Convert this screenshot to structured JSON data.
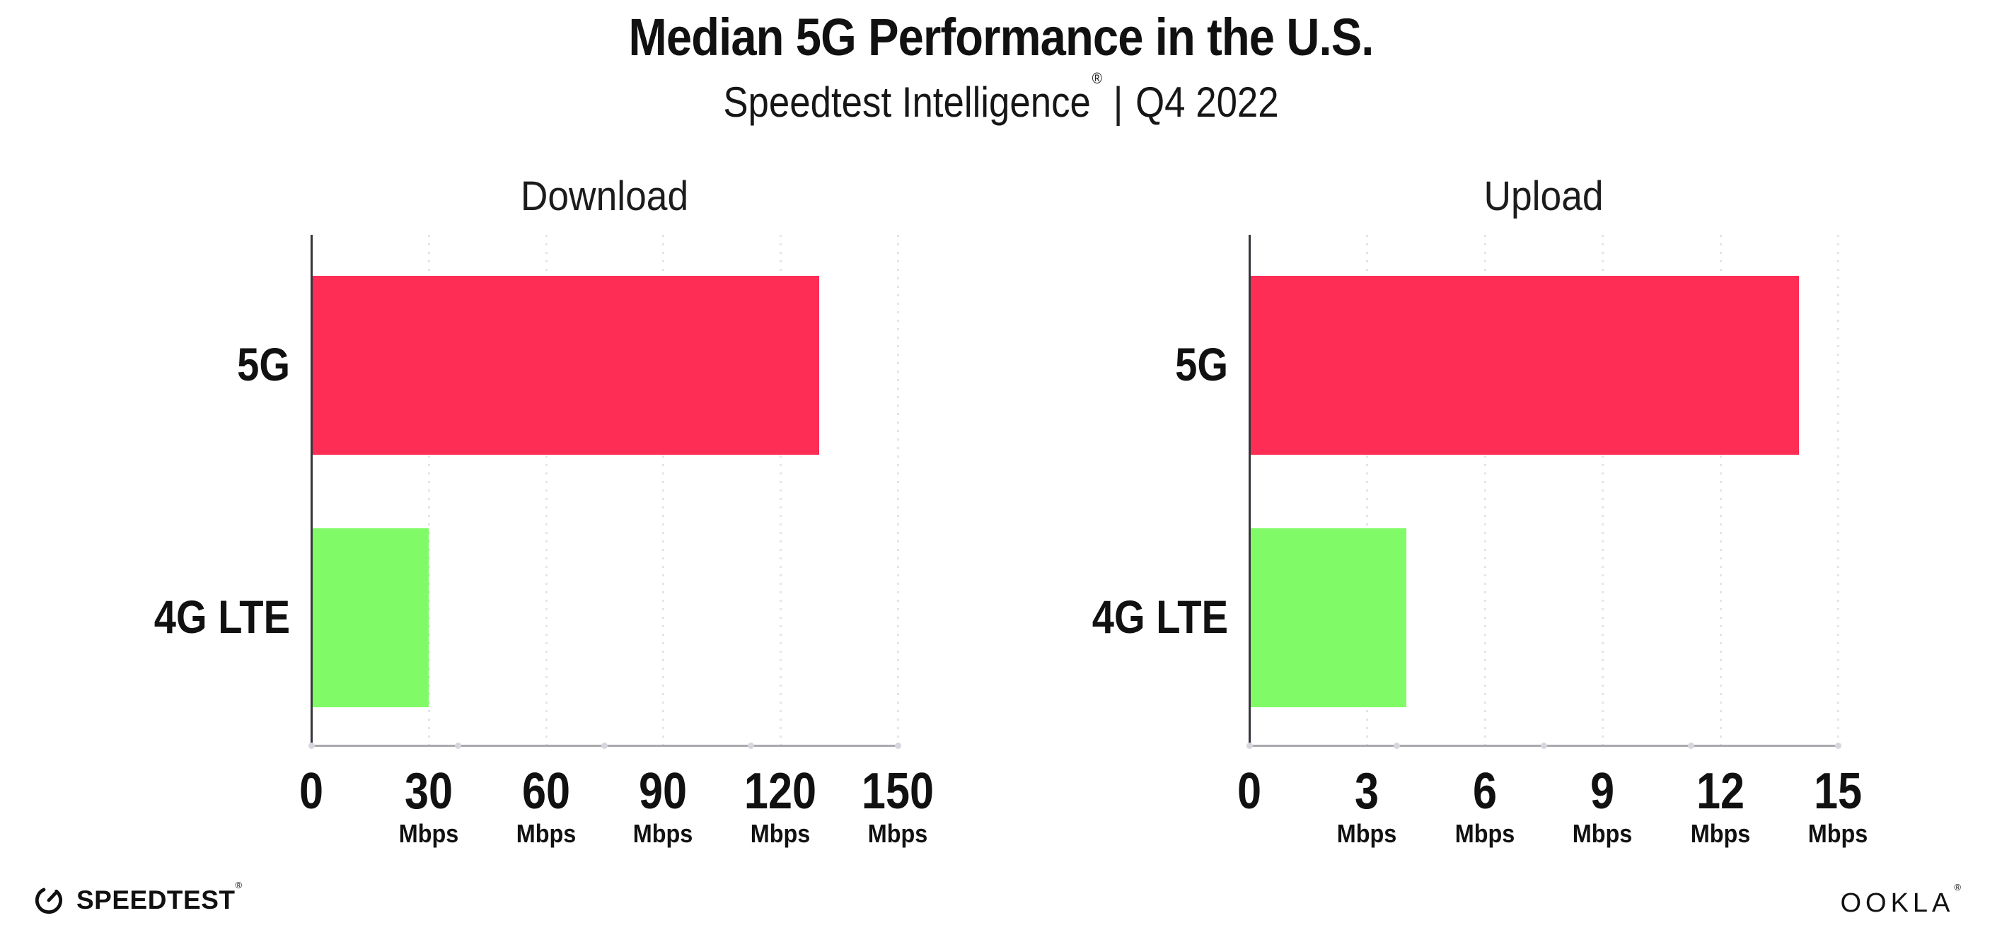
{
  "header": {
    "title": "Median 5G Performance in the U.S.",
    "product": "Speedtest Intelligence",
    "product_mark": "®",
    "separator": "|",
    "period": "Q4 2022"
  },
  "footer": {
    "speedtest": "SPEEDTEST",
    "speedtest_mark": "®",
    "ookla": "OOKLA",
    "ookla_mark": "®"
  },
  "colors": {
    "bar_5g": "#FD2D55",
    "bar_4g_lte": "#80FA66",
    "gridline": "#E4E4EC",
    "axis_line": "#A9A9AE",
    "y_axis": "#35353A",
    "text": "#111111",
    "background": "#FFFFFF"
  },
  "chart_data": [
    {
      "type": "bar",
      "orientation": "horizontal",
      "title": "Download",
      "categories": [
        "5G",
        "4G LTE"
      ],
      "values": [
        130,
        30
      ],
      "unit": "Mbps",
      "xlim": [
        0,
        150
      ],
      "xticks": [
        0,
        30,
        60,
        90,
        120,
        150
      ],
      "bar_colors": [
        "#FD2D55",
        "#80FA66"
      ],
      "grid": "vertical dotted",
      "legend": "none"
    },
    {
      "type": "bar",
      "orientation": "horizontal",
      "title": "Upload",
      "categories": [
        "5G",
        "4G LTE"
      ],
      "values": [
        14,
        4
      ],
      "unit": "Mbps",
      "xlim": [
        0,
        15
      ],
      "xticks": [
        0,
        3,
        6,
        9,
        12,
        15
      ],
      "bar_colors": [
        "#FD2D55",
        "#80FA66"
      ],
      "grid": "vertical dotted",
      "legend": "none"
    }
  ]
}
